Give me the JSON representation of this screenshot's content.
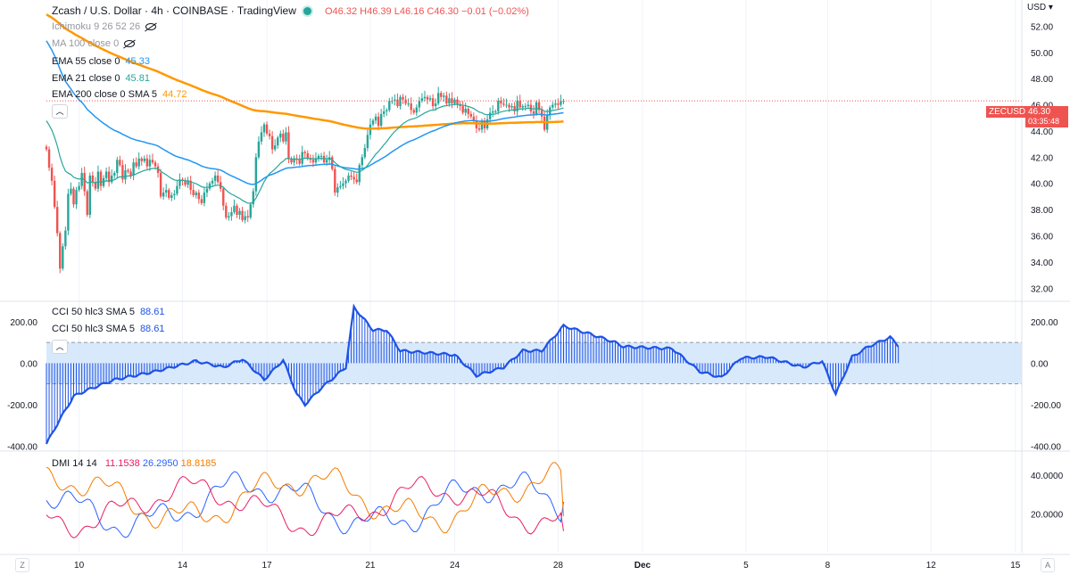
{
  "header": {
    "title": "Zcash / U.S. Dollar · 4h · COINBASE · TradingView",
    "ohlc": {
      "o": "O46.32",
      "h": "H46.39",
      "l": "L46.16",
      "c": "C46.30",
      "chg": "−0.01 (−0.02%)"
    }
  },
  "indicators": {
    "ichimoku": "Ichimoku 9 26 52 26",
    "ma100": "MA 100 close 0",
    "ema55": {
      "label": "EMA 55 close 0",
      "value": "45.33"
    },
    "ema21": {
      "label": "EMA 21 close 0",
      "value": "45.81"
    },
    "ema200": {
      "label": "EMA 200 close 0 SMA 5",
      "value": "44.72"
    },
    "cci1": {
      "label": "CCI 50 hlc3 SMA 5",
      "value": "88.61"
    },
    "cci2": {
      "label": "CCI 50 hlc3 SMA 5",
      "value": "88.61"
    },
    "dmi": {
      "label": "DMI 14 14",
      "plus": "11.1538",
      "minus": "26.2950",
      "adx": "18.8185"
    }
  },
  "price_scale": {
    "currency": "USD",
    "symbol_tag": "ZECUSD",
    "last_price": "46.30",
    "countdown": "03:35:48"
  },
  "colors": {
    "up": "#26a69a",
    "down": "#ef5350",
    "ema21": "#26a69a",
    "ema55": "#2196f3",
    "ema200": "#ff9800",
    "cci": "#1e53e5",
    "cci_band": "#cfe3fb",
    "plus_di": "#2962ff",
    "minus_di": "#f57c00",
    "adx": "#e91e63"
  },
  "chart_data": [
    {
      "type": "candlestick",
      "title": "ZECUSD 4h",
      "ylim": [
        31,
        54
      ],
      "y_ticks": [
        "32.00",
        "34.00",
        "36.00",
        "38.00",
        "40.00",
        "42.00",
        "44.00",
        "46.00",
        "48.00",
        "50.00",
        "52.00"
      ],
      "x_ticks": [
        "10",
        "14",
        "17",
        "21",
        "24",
        "28",
        "Dec",
        "5",
        "8",
        "12",
        "15"
      ],
      "closes": [
        42.6,
        41.2,
        40.2,
        38.2,
        36.2,
        33.5,
        35.2,
        36.4,
        39.2,
        39.6,
        38.4,
        39.5,
        39.8,
        40.8,
        39.4,
        37.6,
        40.6,
        40.1,
        39.6,
        40.9,
        39.8,
        40.4,
        40.9,
        40.1,
        40.6,
        40.8,
        41.8,
        41.4,
        40.3,
        41.0,
        40.9,
        40.6,
        41.6,
        41.3,
        41.9,
        41.7,
        41.9,
        41.3,
        41.8,
        41.6,
        41.3,
        40.8,
        39.0,
        39.3,
        39.5,
        38.9,
        39.1,
        39.2,
        39.8,
        40.3,
        40.2,
        39.9,
        40.2,
        39.5,
        39.1,
        39.3,
        38.8,
        38.5,
        39.3,
        39.6,
        40.0,
        40.2,
        40.6,
        40.1,
        39.6,
        38.3,
        37.4,
        37.5,
        37.8,
        38.3,
        37.6,
        37.9,
        37.2,
        37.5,
        37.4,
        38.4,
        39.4,
        42.0,
        43.2,
        43.9,
        44.5,
        43.8,
        43.6,
        42.6,
        42.9,
        43.5,
        43.8,
        43.2,
        43.9,
        41.9,
        41.6,
        41.9,
        41.8,
        41.5,
        42.4,
        42.3,
        41.9,
        41.8,
        41.6,
        41.9,
        42.1,
        42.1,
        41.6,
        41.8,
        42.0,
        41.1,
        39.3,
        39.7,
        39.8,
        40.0,
        40.2,
        40.6,
        40.5,
        40.3,
        40.1,
        41.4,
        42.0,
        42.7,
        43.7,
        44.5,
        44.8,
        45.1,
        44.4,
        45.3,
        45.5,
        45.6,
        46.3,
        46.3,
        46.4,
        45.9,
        46.6,
        46.4,
        46.1,
        46.1,
        45.6,
        45.4,
        45.8,
        46.3,
        46.5,
        46.6,
        46.4,
        46.5,
        45.9,
        46.1,
        46.9,
        46.6,
        46.7,
        46.1,
        46.5,
        46.1,
        46.4,
        46.0,
        45.9,
        45.4,
        45.7,
        45.3,
        45.1,
        44.8,
        44.2,
        44.1,
        44.8,
        44.2,
        44.9,
        45.4,
        45.5,
        45.5,
        46.3,
        46.1,
        46.0,
        46.0,
        45.8,
        45.9,
        45.5,
        46.3,
        45.8,
        45.9,
        45.9,
        46.0,
        45.5,
        45.3,
        46.2,
        45.6,
        45.1,
        44.1,
        45.2,
        45.8,
        46.0,
        46.1,
        46.0,
        46.3,
        46.3
      ],
      "series": [
        {
          "name": "EMA 21",
          "start": 45.0,
          "end": 45.81
        },
        {
          "name": "EMA 55",
          "start": 51.2,
          "end": 45.33
        },
        {
          "name": "EMA 200",
          "start": 53.0,
          "end": 44.72
        }
      ]
    },
    {
      "type": "area",
      "title": "CCI 50 hlc3 SMA 5",
      "ylim": [
        -420,
        290
      ],
      "y_ticks": [
        "200.00",
        "0.00",
        "-200.00",
        "-400.00"
      ],
      "band": [
        -100,
        100
      ],
      "key_points": [
        [
          0,
          -390
        ],
        [
          5,
          -270
        ],
        [
          10,
          -160
        ],
        [
          15,
          -130
        ],
        [
          25,
          -80
        ],
        [
          40,
          -40
        ],
        [
          55,
          10
        ],
        [
          65,
          -20
        ],
        [
          72,
          20
        ],
        [
          80,
          -80
        ],
        [
          87,
          15
        ],
        [
          92,
          -150
        ],
        [
          95,
          -200
        ],
        [
          101,
          -120
        ],
        [
          110,
          -20
        ],
        [
          113,
          270
        ],
        [
          120,
          160
        ],
        [
          125,
          160
        ],
        [
          130,
          60
        ],
        [
          150,
          40
        ],
        [
          158,
          -60
        ],
        [
          168,
          -20
        ],
        [
          175,
          60
        ],
        [
          182,
          60
        ],
        [
          190,
          180
        ],
        [
          200,
          140
        ],
        [
          209,
          100
        ],
        [
          212,
          80
        ],
        [
          230,
          70
        ],
        [
          240,
          -40
        ],
        [
          248,
          -70
        ],
        [
          255,
          25
        ],
        [
          265,
          30
        ],
        [
          270,
          10
        ],
        [
          278,
          -20
        ],
        [
          285,
          10
        ],
        [
          290,
          -150
        ],
        [
          296,
          30
        ],
        [
          302,
          80
        ],
        [
          310,
          125
        ],
        [
          313,
          85
        ]
      ]
    },
    {
      "type": "line",
      "title": "DMI 14 14",
      "ylim": [
        0,
        52
      ],
      "y_ticks": [
        "40.0000",
        "20.0000"
      ],
      "series": [
        {
          "name": "+DI",
          "end": 11.1538
        },
        {
          "name": "−DI",
          "end": 26.295
        },
        {
          "name": "ADX",
          "end": 18.8185
        }
      ]
    }
  ]
}
